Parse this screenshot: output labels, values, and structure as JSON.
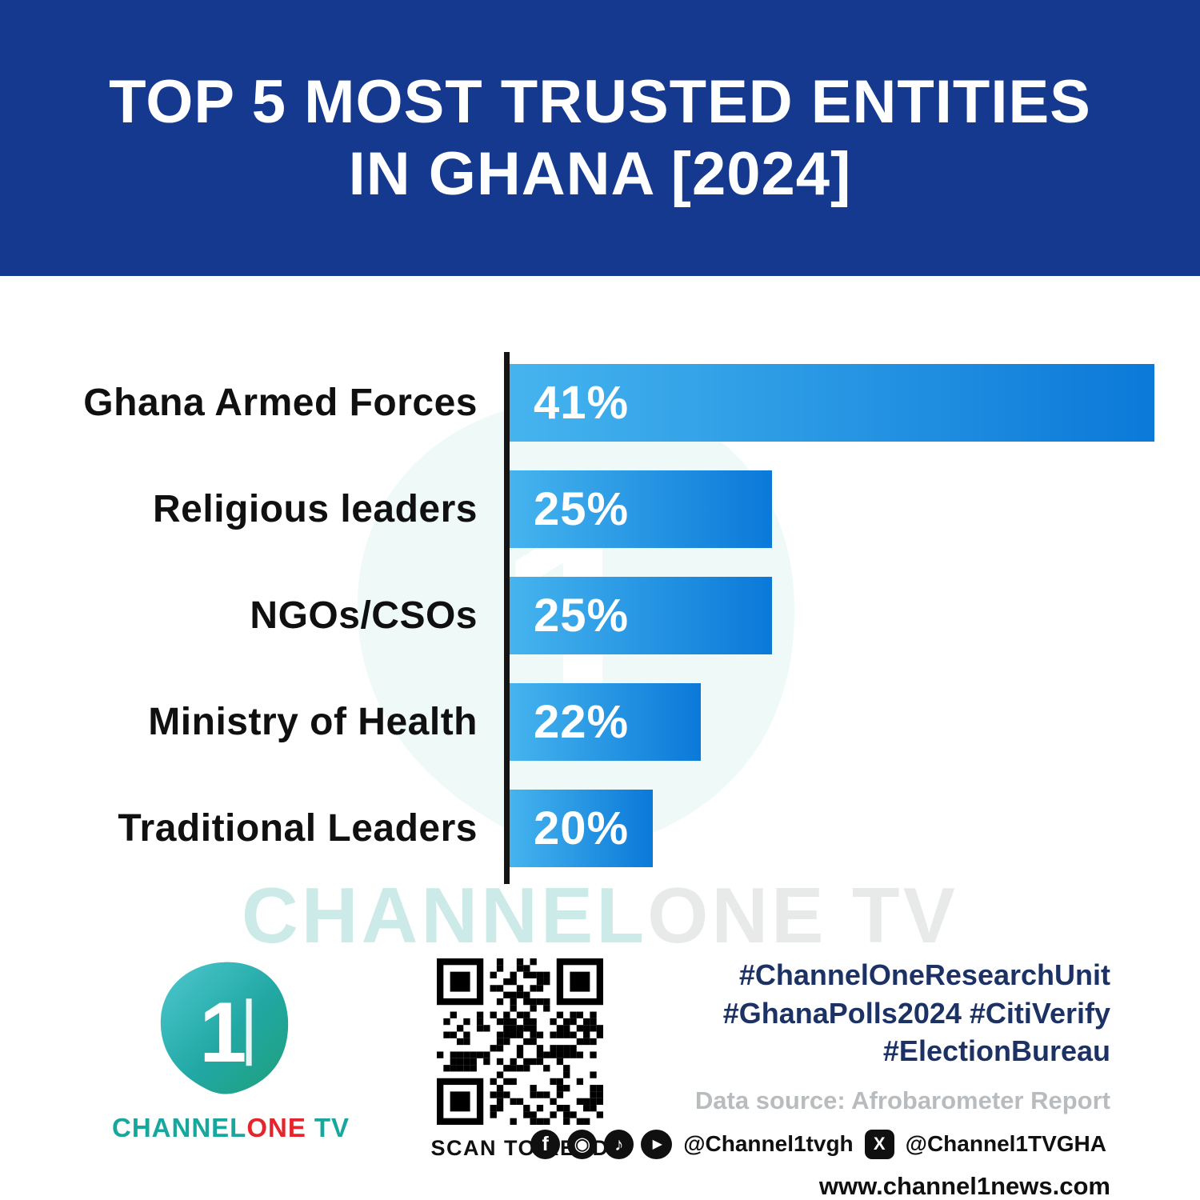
{
  "title": {
    "line1": "TOP 5 MOST TRUSTED ENTITIES",
    "line2": "IN GHANA [2024]"
  },
  "chart_data": {
    "type": "bar",
    "orientation": "horizontal",
    "title": "TOP 5 MOST TRUSTED ENTITIES IN GHANA [2024]",
    "categories": [
      "Ghana Armed Forces",
      "Religious leaders",
      "NGOs/CSOs",
      "Ministry of Health",
      "Traditional Leaders"
    ],
    "values": [
      41,
      25,
      25,
      22,
      20
    ],
    "value_labels": [
      "41%",
      "25%",
      "25%",
      "22%",
      "20%"
    ],
    "unit": "%",
    "xlim": [
      14,
      41
    ],
    "grid": false,
    "legend": false
  },
  "watermark": {
    "part1": "CHANNEL",
    "part2": "ONE TV"
  },
  "footer": {
    "logo": {
      "numeral": "1",
      "brand_channel": "CHANNEL",
      "brand_one": "ONE",
      "brand_tv": "TV"
    },
    "qr_caption": "SCAN TO READ",
    "hashtags": [
      "#ChannelOneResearchUnit",
      "#GhanaPolls2024 #CitiVerify",
      "#ElectionBureau"
    ],
    "data_source": "Data source: Afrobarometer Report",
    "social": {
      "facebook_glyph": "f",
      "instagram_glyph": "◉",
      "tiktok_glyph": "♪",
      "youtube_glyph": "▶",
      "x_glyph": "X",
      "handle_main": "@Channel1tvgh",
      "handle_x": "@Channel1TVGHA"
    },
    "website": "www.channel1news.com"
  },
  "colors": {
    "banner_blue": "#14398f",
    "bar_start": "#45b4ee",
    "bar_end": "#0b79d8",
    "axis_black": "#141414",
    "label_black": "#101010",
    "hashtag_navy": "#1d3264",
    "source_gray": "#b9bcbf",
    "brand_teal": "#18a79d",
    "brand_red": "#e4252b",
    "watermark_teal": "#8fd2cb",
    "watermark_gray": "#d2d7d7"
  }
}
